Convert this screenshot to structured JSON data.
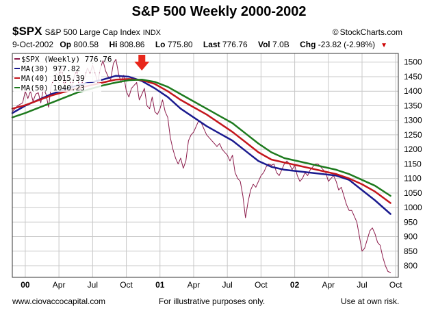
{
  "chart_data": {
    "type": "line",
    "title": "S&P 500 Weekly 2000-2002",
    "header": {
      "symbol": "$SPX",
      "name": "S&P 500 Large Cap Index",
      "exchange": "INDX",
      "date": "9-Oct-2002",
      "op_label": "Op",
      "op": "800.58",
      "hi_label": "Hi",
      "hi": "808.86",
      "lo_label": "Lo",
      "lo": "775.80",
      "last_label": "Last",
      "last": "776.76",
      "vol_label": "Vol",
      "vol": "7.0B",
      "chg_label": "Chg",
      "chg": "-23.82 (-2.98%)"
    },
    "brand": "StockCharts.com",
    "footer": {
      "left": "www.ciovaccocapital.com",
      "center": "For illustrative purposes only.",
      "right": "Use at own risk."
    },
    "x_ticks": [
      {
        "label": "00",
        "t": 0,
        "bold": true
      },
      {
        "label": "Apr",
        "t": 13
      },
      {
        "label": "Jul",
        "t": 26
      },
      {
        "label": "Oct",
        "t": 39
      },
      {
        "label": "01",
        "t": 52,
        "bold": true
      },
      {
        "label": "Apr",
        "t": 65
      },
      {
        "label": "Jul",
        "t": 78
      },
      {
        "label": "Oct",
        "t": 91
      },
      {
        "label": "02",
        "t": 104,
        "bold": true
      },
      {
        "label": "Apr",
        "t": 117
      },
      {
        "label": "Jul",
        "t": 130
      },
      {
        "label": "Oct",
        "t": 143
      }
    ],
    "x_range": [
      -5,
      144
    ],
    "ylim": [
      760,
      1530
    ],
    "y_ticks": [
      800,
      850,
      900,
      950,
      1000,
      1050,
      1100,
      1150,
      1200,
      1250,
      1300,
      1350,
      1400,
      1450,
      1500
    ],
    "grid": true,
    "annotation": {
      "type": "down-arrow",
      "t": 45,
      "color": "#e8271b"
    },
    "series": [
      {
        "name": "$SPX (Weekly)",
        "value": "776.76",
        "color": "#8b1a4a",
        "width": 1,
        "points": [
          [
            -5,
            1330
          ],
          [
            -3,
            1350
          ],
          [
            -1,
            1360
          ],
          [
            0,
            1400
          ],
          [
            1,
            1375
          ],
          [
            2,
            1400
          ],
          [
            3,
            1365
          ],
          [
            4,
            1390
          ],
          [
            5,
            1395
          ],
          [
            6,
            1360
          ],
          [
            7,
            1410
          ],
          [
            8,
            1390
          ],
          [
            9,
            1345
          ],
          [
            10,
            1420
          ],
          [
            11,
            1440
          ],
          [
            12,
            1460
          ],
          [
            13,
            1450
          ],
          [
            14,
            1480
          ],
          [
            15,
            1420
          ],
          [
            16,
            1440
          ],
          [
            17,
            1450
          ],
          [
            18,
            1410
          ],
          [
            19,
            1455
          ],
          [
            20,
            1470
          ],
          [
            21,
            1400
          ],
          [
            22,
            1430
          ],
          [
            23,
            1450
          ],
          [
            24,
            1480
          ],
          [
            25,
            1460
          ],
          [
            26,
            1490
          ],
          [
            27,
            1460
          ],
          [
            28,
            1430
          ],
          [
            29,
            1480
          ],
          [
            30,
            1505
          ],
          [
            31,
            1470
          ],
          [
            32,
            1450
          ],
          [
            33,
            1440
          ],
          [
            34,
            1495
          ],
          [
            35,
            1510
          ],
          [
            36,
            1460
          ],
          [
            37,
            1430
          ],
          [
            38,
            1455
          ],
          [
            39,
            1400
          ],
          [
            40,
            1380
          ],
          [
            41,
            1410
          ],
          [
            42,
            1420
          ],
          [
            43,
            1430
          ],
          [
            44,
            1370
          ],
          [
            45,
            1390
          ],
          [
            46,
            1410
          ],
          [
            47,
            1350
          ],
          [
            48,
            1340
          ],
          [
            49,
            1380
          ],
          [
            50,
            1330
          ],
          [
            51,
            1320
          ],
          [
            52,
            1340
          ],
          [
            53,
            1370
          ],
          [
            54,
            1330
          ],
          [
            55,
            1310
          ],
          [
            56,
            1240
          ],
          [
            57,
            1200
          ],
          [
            58,
            1170
          ],
          [
            59,
            1150
          ],
          [
            60,
            1170
          ],
          [
            61,
            1135
          ],
          [
            62,
            1160
          ],
          [
            63,
            1230
          ],
          [
            64,
            1250
          ],
          [
            65,
            1260
          ],
          [
            66,
            1280
          ],
          [
            67,
            1300
          ],
          [
            68,
            1290
          ],
          [
            69,
            1270
          ],
          [
            70,
            1250
          ],
          [
            71,
            1240
          ],
          [
            72,
            1230
          ],
          [
            73,
            1220
          ],
          [
            74,
            1210
          ],
          [
            75,
            1220
          ],
          [
            76,
            1200
          ],
          [
            77,
            1190
          ],
          [
            78,
            1180
          ],
          [
            79,
            1160
          ],
          [
            80,
            1180
          ],
          [
            81,
            1120
          ],
          [
            82,
            1100
          ],
          [
            83,
            1090
          ],
          [
            84,
            1040
          ],
          [
            85,
            965
          ],
          [
            86,
            1020
          ],
          [
            87,
            1060
          ],
          [
            88,
            1080
          ],
          [
            89,
            1070
          ],
          [
            90,
            1090
          ],
          [
            91,
            1110
          ],
          [
            92,
            1120
          ],
          [
            93,
            1140
          ],
          [
            94,
            1150
          ],
          [
            95,
            1145
          ],
          [
            96,
            1150
          ],
          [
            97,
            1120
          ],
          [
            98,
            1110
          ],
          [
            99,
            1130
          ],
          [
            100,
            1150
          ],
          [
            101,
            1160
          ],
          [
            102,
            1150
          ],
          [
            103,
            1130
          ],
          [
            104,
            1145
          ],
          [
            105,
            1110
          ],
          [
            106,
            1090
          ],
          [
            107,
            1100
          ],
          [
            108,
            1120
          ],
          [
            109,
            1110
          ],
          [
            110,
            1130
          ],
          [
            111,
            1140
          ],
          [
            112,
            1150
          ],
          [
            113,
            1150
          ],
          [
            114,
            1140
          ],
          [
            115,
            1130
          ],
          [
            116,
            1120
          ],
          [
            117,
            1090
          ],
          [
            118,
            1100
          ],
          [
            119,
            1110
          ],
          [
            120,
            1090
          ],
          [
            121,
            1060
          ],
          [
            122,
            1070
          ],
          [
            123,
            1040
          ],
          [
            124,
            1010
          ],
          [
            125,
            990
          ],
          [
            126,
            990
          ],
          [
            127,
            970
          ],
          [
            128,
            950
          ],
          [
            129,
            900
          ],
          [
            130,
            850
          ],
          [
            131,
            860
          ],
          [
            132,
            890
          ],
          [
            133,
            920
          ],
          [
            134,
            930
          ],
          [
            135,
            910
          ],
          [
            136,
            880
          ],
          [
            137,
            870
          ],
          [
            138,
            830
          ],
          [
            139,
            800
          ],
          [
            140,
            780
          ],
          [
            141,
            776.76
          ]
        ]
      },
      {
        "name": "MA(30)",
        "value": "977.82",
        "color": "#1a1a8e",
        "width": 2.5,
        "points": [
          [
            -5,
            1325
          ],
          [
            0,
            1350
          ],
          [
            10,
            1390
          ],
          [
            20,
            1420
          ],
          [
            30,
            1440
          ],
          [
            35,
            1453
          ],
          [
            40,
            1450
          ],
          [
            45,
            1435
          ],
          [
            50,
            1410
          ],
          [
            55,
            1380
          ],
          [
            60,
            1340
          ],
          [
            65,
            1310
          ],
          [
            70,
            1280
          ],
          [
            75,
            1255
          ],
          [
            80,
            1230
          ],
          [
            85,
            1195
          ],
          [
            90,
            1160
          ],
          [
            95,
            1140
          ],
          [
            100,
            1130
          ],
          [
            105,
            1125
          ],
          [
            110,
            1120
          ],
          [
            115,
            1115
          ],
          [
            120,
            1110
          ],
          [
            125,
            1095
          ],
          [
            130,
            1060
          ],
          [
            135,
            1025
          ],
          [
            141,
            977.82
          ]
        ]
      },
      {
        "name": "MA(40)",
        "value": "1015.39",
        "color": "#c4161c",
        "width": 2.5,
        "points": [
          [
            -5,
            1340
          ],
          [
            0,
            1352
          ],
          [
            10,
            1385
          ],
          [
            20,
            1410
          ],
          [
            30,
            1430
          ],
          [
            35,
            1440
          ],
          [
            40,
            1442
          ],
          [
            45,
            1438
          ],
          [
            50,
            1425
          ],
          [
            55,
            1400
          ],
          [
            60,
            1370
          ],
          [
            65,
            1345
          ],
          [
            70,
            1320
          ],
          [
            75,
            1290
          ],
          [
            80,
            1260
          ],
          [
            85,
            1225
          ],
          [
            90,
            1190
          ],
          [
            95,
            1165
          ],
          [
            100,
            1155
          ],
          [
            105,
            1145
          ],
          [
            110,
            1135
          ],
          [
            115,
            1125
          ],
          [
            120,
            1115
          ],
          [
            125,
            1100
          ],
          [
            130,
            1080
          ],
          [
            135,
            1055
          ],
          [
            141,
            1015.39
          ]
        ]
      },
      {
        "name": "MA(50)",
        "value": "1040.23",
        "color": "#1e7a1e",
        "width": 2.5,
        "points": [
          [
            -5,
            1310
          ],
          [
            0,
            1325
          ],
          [
            10,
            1360
          ],
          [
            20,
            1395
          ],
          [
            30,
            1420
          ],
          [
            35,
            1430
          ],
          [
            40,
            1438
          ],
          [
            45,
            1440
          ],
          [
            50,
            1432
          ],
          [
            55,
            1415
          ],
          [
            60,
            1390
          ],
          [
            65,
            1365
          ],
          [
            70,
            1340
          ],
          [
            75,
            1315
          ],
          [
            80,
            1290
          ],
          [
            85,
            1255
          ],
          [
            90,
            1220
          ],
          [
            95,
            1190
          ],
          [
            100,
            1170
          ],
          [
            105,
            1160
          ],
          [
            110,
            1150
          ],
          [
            115,
            1140
          ],
          [
            120,
            1130
          ],
          [
            125,
            1115
          ],
          [
            130,
            1095
          ],
          [
            135,
            1075
          ],
          [
            141,
            1040.23
          ]
        ]
      }
    ]
  }
}
